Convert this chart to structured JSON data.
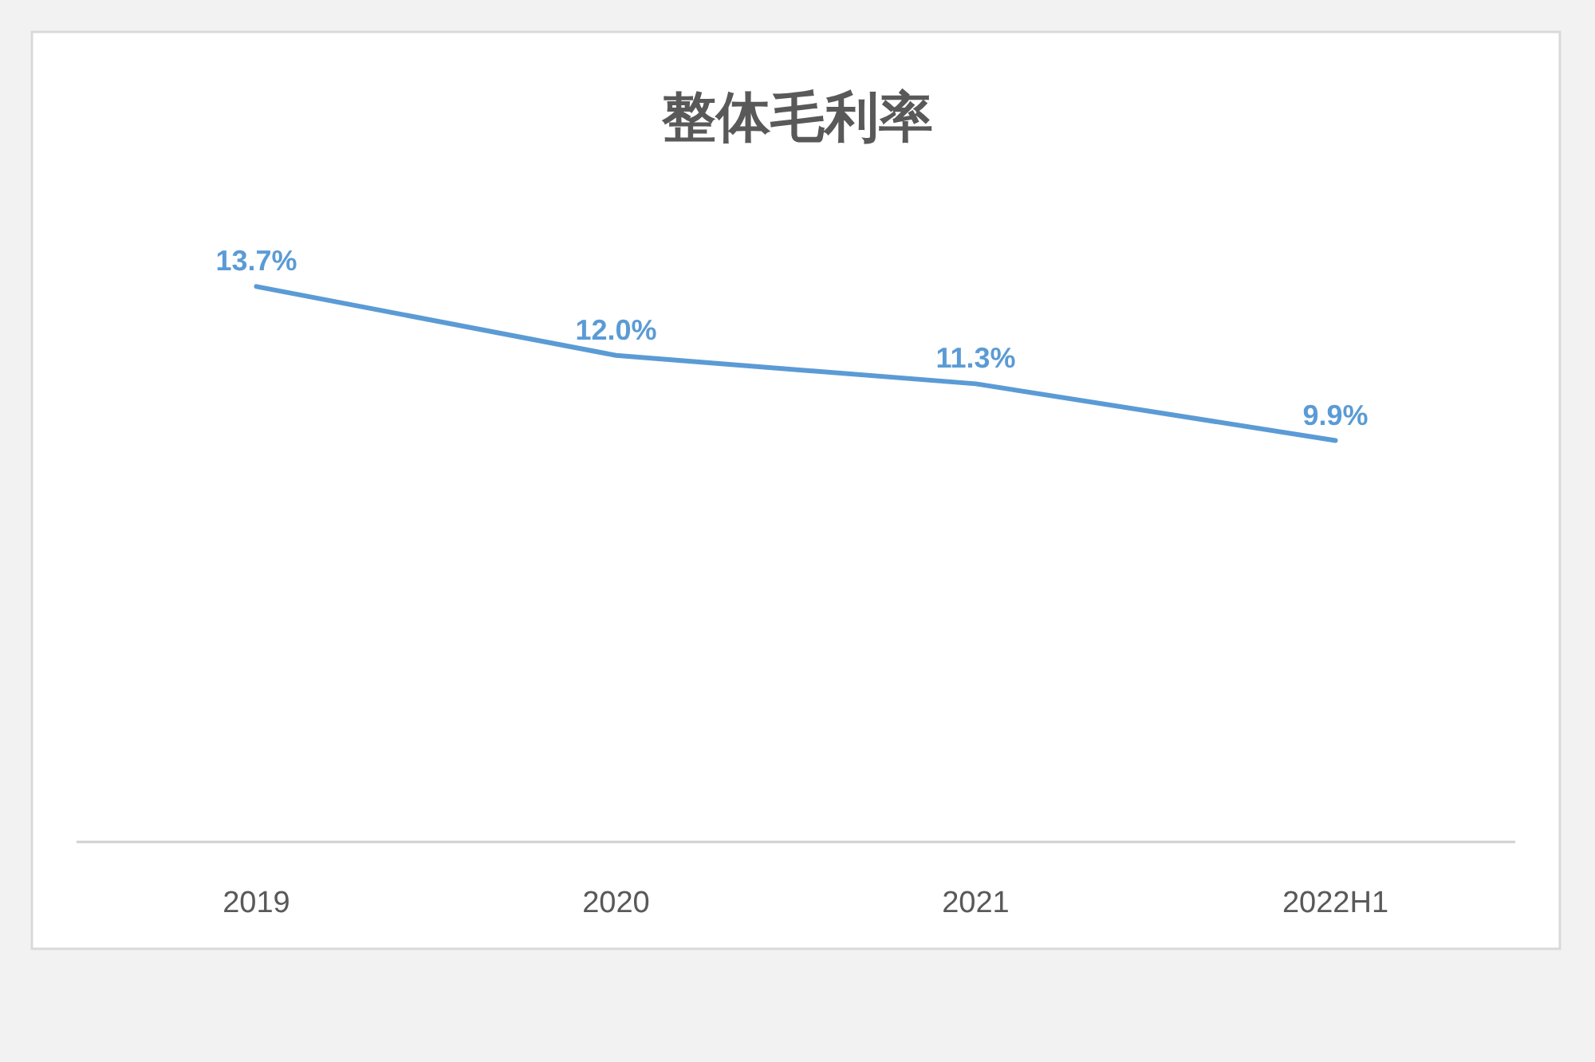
{
  "chart_data": {
    "type": "line",
    "title": "整体毛利率",
    "categories": [
      "2019",
      "2020",
      "2021",
      "2022H1"
    ],
    "series": [
      {
        "color": "#5b9bd5",
        "values": [
          13.7,
          12.0,
          11.3,
          9.9
        ],
        "value_labels": [
          "13.7%",
          "12.0%",
          "11.3%",
          "9.9%"
        ]
      }
    ],
    "marker": "none",
    "line_style": "solid"
  }
}
